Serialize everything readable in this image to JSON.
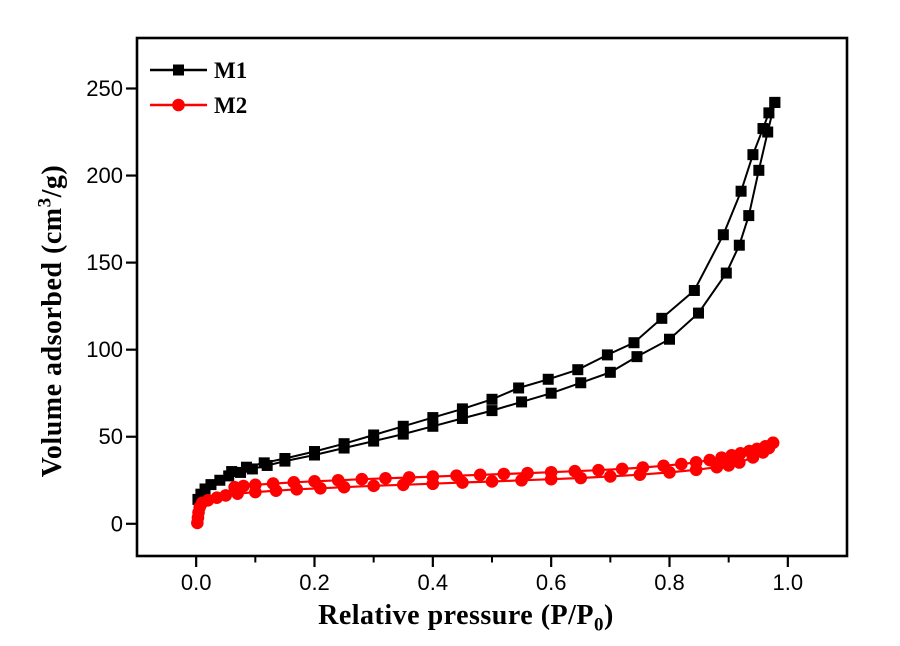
{
  "figure": {
    "background": "#ffffff",
    "frame_color": "#000000"
  },
  "chart_data": {
    "type": "line",
    "title": "",
    "xlabel": {
      "text": "Relative pressure (P/P",
      "sub": "0",
      "end": ")"
    },
    "ylabel": {
      "text": "Volume adsorbed (cm",
      "sup": "3",
      "end": "/g)"
    },
    "xlim": [
      -0.1,
      1.1
    ],
    "ylim": [
      -18.5,
      279
    ],
    "grid": false,
    "legend": {
      "position": "top-left",
      "items": [
        "M1",
        "M2"
      ]
    },
    "x_ticks": {
      "major": [
        0.0,
        0.2,
        0.4,
        0.6,
        0.8,
        1.0
      ],
      "labels": [
        "0.0",
        "0.2",
        "0.4",
        "0.6",
        "0.8",
        "1.0"
      ],
      "minor": [
        0.1,
        0.3,
        0.5,
        0.7,
        0.9
      ]
    },
    "y_ticks": {
      "major": [
        0,
        50,
        100,
        150,
        200,
        250
      ],
      "labels": [
        "0",
        "50",
        "100",
        "150",
        "200",
        "250"
      ],
      "minor": []
    },
    "series": [
      {
        "name": "M1",
        "color": "#000000",
        "marker": "square",
        "marker_size": 11,
        "line_width": 2,
        "adsorption": [
          [
            0.003,
            14
          ],
          [
            0.008,
            17
          ],
          [
            0.015,
            20
          ],
          [
            0.025,
            22.5
          ],
          [
            0.04,
            25
          ],
          [
            0.055,
            27.5
          ],
          [
            0.075,
            29.5
          ],
          [
            0.095,
            31.5
          ],
          [
            0.12,
            33.5
          ],
          [
            0.15,
            36
          ],
          [
            0.2,
            39.5
          ],
          [
            0.25,
            43.5
          ],
          [
            0.3,
            47.5
          ],
          [
            0.35,
            51.5
          ],
          [
            0.4,
            56
          ],
          [
            0.45,
            60.5
          ],
          [
            0.5,
            65
          ],
          [
            0.55,
            70
          ],
          [
            0.6,
            75
          ],
          [
            0.65,
            81
          ],
          [
            0.7,
            87
          ],
          [
            0.745,
            96
          ],
          [
            0.8,
            106
          ],
          [
            0.849,
            121
          ],
          [
            0.896,
            144
          ],
          [
            0.918,
            160
          ],
          [
            0.934,
            177
          ],
          [
            0.951,
            203
          ],
          [
            0.966,
            225
          ],
          [
            0.978,
            242
          ]
        ],
        "desorption": [
          [
            0.978,
            242
          ],
          [
            0.968,
            236
          ],
          [
            0.958,
            227
          ],
          [
            0.941,
            212
          ],
          [
            0.921,
            191
          ],
          [
            0.891,
            166
          ],
          [
            0.842,
            134
          ],
          [
            0.787,
            118
          ],
          [
            0.74,
            104
          ],
          [
            0.695,
            97
          ],
          [
            0.645,
            88.5
          ],
          [
            0.595,
            83
          ],
          [
            0.545,
            78
          ],
          [
            0.5,
            71.5
          ],
          [
            0.45,
            66
          ],
          [
            0.4,
            61
          ],
          [
            0.35,
            56
          ],
          [
            0.3,
            51
          ],
          [
            0.25,
            46
          ],
          [
            0.2,
            41.5
          ],
          [
            0.15,
            37.5
          ],
          [
            0.115,
            35
          ],
          [
            0.085,
            32.5
          ],
          [
            0.06,
            30
          ]
        ]
      },
      {
        "name": "M2",
        "color": "#ff0000",
        "marker": "circle",
        "marker_size": 12.6,
        "line_width": 2.2,
        "adsorption": [
          [
            0.002,
            0.5
          ],
          [
            0.003,
            3.5
          ],
          [
            0.004,
            6.5
          ],
          [
            0.006,
            9.5
          ],
          [
            0.01,
            12
          ],
          [
            0.02,
            13.5
          ],
          [
            0.035,
            15
          ],
          [
            0.05,
            16.3
          ],
          [
            0.07,
            17.3
          ],
          [
            0.1,
            18.2
          ],
          [
            0.135,
            19
          ],
          [
            0.17,
            19.8
          ],
          [
            0.21,
            20.4
          ],
          [
            0.25,
            21
          ],
          [
            0.3,
            21.8
          ],
          [
            0.35,
            22.4
          ],
          [
            0.4,
            23
          ],
          [
            0.45,
            23.7
          ],
          [
            0.5,
            24.3
          ],
          [
            0.55,
            25
          ],
          [
            0.6,
            25.6
          ],
          [
            0.65,
            26.3
          ],
          [
            0.7,
            27.2
          ],
          [
            0.75,
            28.2
          ],
          [
            0.8,
            29.5
          ],
          [
            0.845,
            31
          ],
          [
            0.88,
            32.5
          ],
          [
            0.9,
            33.5
          ],
          [
            0.918,
            35.2
          ],
          [
            0.941,
            38.1
          ],
          [
            0.958,
            41
          ],
          [
            0.968,
            43.5
          ],
          [
            0.975,
            46.5
          ]
        ],
        "desorption": [
          [
            0.975,
            46.5
          ],
          [
            0.962,
            44.5
          ],
          [
            0.948,
            43
          ],
          [
            0.935,
            41.8
          ],
          [
            0.92,
            40.5
          ],
          [
            0.905,
            39.3
          ],
          [
            0.888,
            38
          ],
          [
            0.868,
            36.6
          ],
          [
            0.845,
            35.3
          ],
          [
            0.82,
            34.3
          ],
          [
            0.79,
            33.3
          ],
          [
            0.755,
            32.3
          ],
          [
            0.72,
            31.5
          ],
          [
            0.68,
            30.8
          ],
          [
            0.64,
            30.2
          ],
          [
            0.6,
            29.6
          ],
          [
            0.56,
            29.1
          ],
          [
            0.52,
            28.6
          ],
          [
            0.48,
            28.1
          ],
          [
            0.44,
            27.6
          ],
          [
            0.4,
            27.1
          ],
          [
            0.36,
            26.6
          ],
          [
            0.32,
            26.1
          ],
          [
            0.28,
            25.6
          ],
          [
            0.24,
            25
          ],
          [
            0.2,
            24.4
          ],
          [
            0.165,
            23.8
          ],
          [
            0.13,
            23.1
          ],
          [
            0.1,
            22.4
          ],
          [
            0.08,
            21.7
          ],
          [
            0.065,
            21
          ]
        ]
      }
    ]
  }
}
